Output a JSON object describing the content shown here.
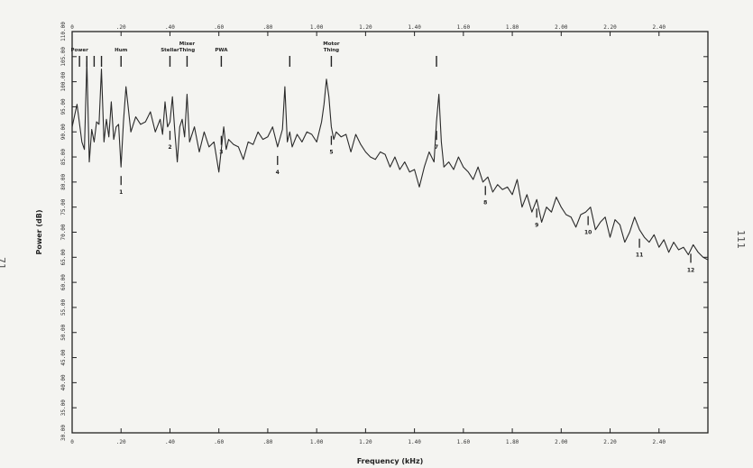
{
  "page": {
    "left_number": "71",
    "right_number": "111"
  },
  "chart_data": {
    "type": "line",
    "xlabel": "Frequency (kHz)",
    "ylabel": "Power (dB)",
    "xlim": [
      0,
      2.6
    ],
    "ylim": [
      30,
      110
    ],
    "x_ticks": [
      0,
      0.2,
      0.4,
      0.6,
      0.8,
      1.0,
      1.2,
      1.4,
      1.6,
      1.8,
      2.0,
      2.2,
      2.4
    ],
    "x_tick_labels": [
      "0",
      ".20",
      ".40",
      ".60",
      ".80",
      "1.00",
      "1.20",
      "1.40",
      "1.60",
      "1.80",
      "2.00",
      "2.20",
      "2.40"
    ],
    "y_ticks": [
      30,
      35,
      40,
      45,
      50,
      55,
      60,
      65,
      70,
      75,
      80,
      85,
      90,
      95,
      100,
      105,
      110
    ],
    "y_tick_labels": [
      "30.00",
      "35.00",
      "40.00",
      "45.00",
      "50.00",
      "55.00",
      "60.00",
      "65.00",
      "70.00",
      "75.00",
      "80.00",
      "85.00",
      "90.00",
      "95.00",
      "100.00",
      "105.00",
      "110.00"
    ],
    "grid": false,
    "series": [
      {
        "color": "#2a2a2a",
        "x": [
          0.0,
          0.02,
          0.04,
          0.05,
          0.06,
          0.07,
          0.08,
          0.09,
          0.1,
          0.11,
          0.12,
          0.13,
          0.14,
          0.15,
          0.16,
          0.17,
          0.18,
          0.19,
          0.2,
          0.21,
          0.22,
          0.24,
          0.26,
          0.28,
          0.3,
          0.32,
          0.34,
          0.36,
          0.37,
          0.38,
          0.39,
          0.4,
          0.41,
          0.42,
          0.43,
          0.44,
          0.45,
          0.46,
          0.47,
          0.48,
          0.5,
          0.52,
          0.54,
          0.56,
          0.58,
          0.6,
          0.62,
          0.63,
          0.64,
          0.66,
          0.68,
          0.7,
          0.72,
          0.74,
          0.76,
          0.78,
          0.8,
          0.82,
          0.84,
          0.86,
          0.87,
          0.88,
          0.89,
          0.9,
          0.92,
          0.94,
          0.96,
          0.98,
          1.0,
          1.02,
          1.03,
          1.04,
          1.05,
          1.06,
          1.07,
          1.08,
          1.1,
          1.12,
          1.14,
          1.16,
          1.18,
          1.2,
          1.22,
          1.24,
          1.26,
          1.28,
          1.3,
          1.32,
          1.34,
          1.36,
          1.38,
          1.4,
          1.42,
          1.44,
          1.46,
          1.48,
          1.49,
          1.5,
          1.51,
          1.52,
          1.54,
          1.56,
          1.58,
          1.6,
          1.62,
          1.64,
          1.66,
          1.68,
          1.7,
          1.72,
          1.74,
          1.76,
          1.78,
          1.8,
          1.82,
          1.84,
          1.86,
          1.88,
          1.9,
          1.92,
          1.94,
          1.96,
          1.98,
          2.0,
          2.02,
          2.04,
          2.06,
          2.08,
          2.1,
          2.12,
          2.14,
          2.16,
          2.18,
          2.2,
          2.22,
          2.24,
          2.26,
          2.28,
          2.3,
          2.32,
          2.34,
          2.36,
          2.38,
          2.4,
          2.42,
          2.44,
          2.46,
          2.48,
          2.5,
          2.52,
          2.54,
          2.56,
          2.58,
          2.6
        ],
        "y": [
          91.0,
          95.5,
          88.0,
          86.5,
          104.0,
          84.0,
          90.5,
          88.0,
          92.0,
          91.5,
          102.5,
          88.0,
          92.5,
          89.0,
          96.0,
          88.5,
          91.0,
          91.5,
          83.0,
          92.0,
          99.0,
          90.0,
          93.0,
          91.5,
          92.0,
          94.0,
          90.0,
          92.5,
          89.5,
          96.0,
          91.0,
          92.0,
          97.0,
          90.0,
          84.0,
          91.0,
          92.5,
          89.0,
          97.5,
          88.0,
          91.0,
          86.0,
          90.0,
          87.0,
          88.0,
          82.0,
          91.0,
          86.5,
          88.5,
          87.5,
          87.0,
          84.5,
          88.0,
          87.5,
          90.0,
          88.5,
          89.0,
          91.0,
          87.0,
          90.5,
          99.0,
          88.0,
          90.0,
          87.0,
          89.5,
          88.0,
          90.0,
          89.5,
          88.0,
          92.0,
          95.5,
          100.5,
          97.0,
          91.0,
          88.5,
          90.0,
          89.0,
          89.5,
          86.0,
          89.5,
          87.5,
          86.0,
          85.0,
          84.5,
          86.0,
          85.5,
          83.0,
          85.0,
          82.5,
          84.0,
          82.0,
          82.5,
          79.0,
          83.0,
          86.0,
          84.0,
          92.0,
          97.5,
          88.0,
          83.0,
          84.0,
          82.5,
          85.0,
          83.0,
          82.0,
          80.5,
          83.0,
          80.0,
          81.0,
          78.0,
          79.5,
          78.5,
          79.0,
          77.5,
          80.5,
          75.0,
          77.5,
          74.0,
          76.5,
          72.0,
          75.0,
          74.0,
          77.0,
          75.0,
          73.5,
          73.0,
          71.0,
          73.5,
          74.0,
          75.0,
          70.5,
          72.0,
          73.0,
          69.0,
          72.5,
          71.5,
          68.0,
          70.0,
          73.0,
          70.5,
          69.0,
          68.0,
          69.5,
          67.0,
          68.5,
          66.0,
          68.0,
          66.5,
          67.0,
          65.5,
          67.5,
          66.0,
          65.0,
          64.5
        ]
      }
    ],
    "annotations_top": [
      {
        "x": 0.03,
        "label": "Power"
      },
      {
        "x": 0.2,
        "label": "Hum"
      },
      {
        "x": 0.4,
        "label": "Stellar"
      },
      {
        "x": 0.47,
        "label": "Mixer Thing"
      },
      {
        "x": 0.61,
        "label": "PWA"
      },
      {
        "x": 1.06,
        "label": "Motor Thing"
      }
    ],
    "top_marker_x": [
      0.03,
      0.06,
      0.09,
      0.12,
      0.2,
      0.4,
      0.47,
      0.61,
      0.89,
      1.06,
      1.49
    ],
    "annotations_bottom": [
      {
        "x": 0.2,
        "label": "1"
      },
      {
        "x": 0.4,
        "label": "2"
      },
      {
        "x": 0.61,
        "label": "3"
      },
      {
        "x": 0.84,
        "label": "4"
      },
      {
        "x": 1.06,
        "label": "5"
      },
      {
        "x": 1.49,
        "label": "7"
      },
      {
        "x": 1.69,
        "label": "8"
      },
      {
        "x": 1.9,
        "label": "9"
      },
      {
        "x": 2.11,
        "label": "10"
      },
      {
        "x": 2.32,
        "label": "11"
      },
      {
        "x": 2.53,
        "label": "12"
      }
    ]
  }
}
